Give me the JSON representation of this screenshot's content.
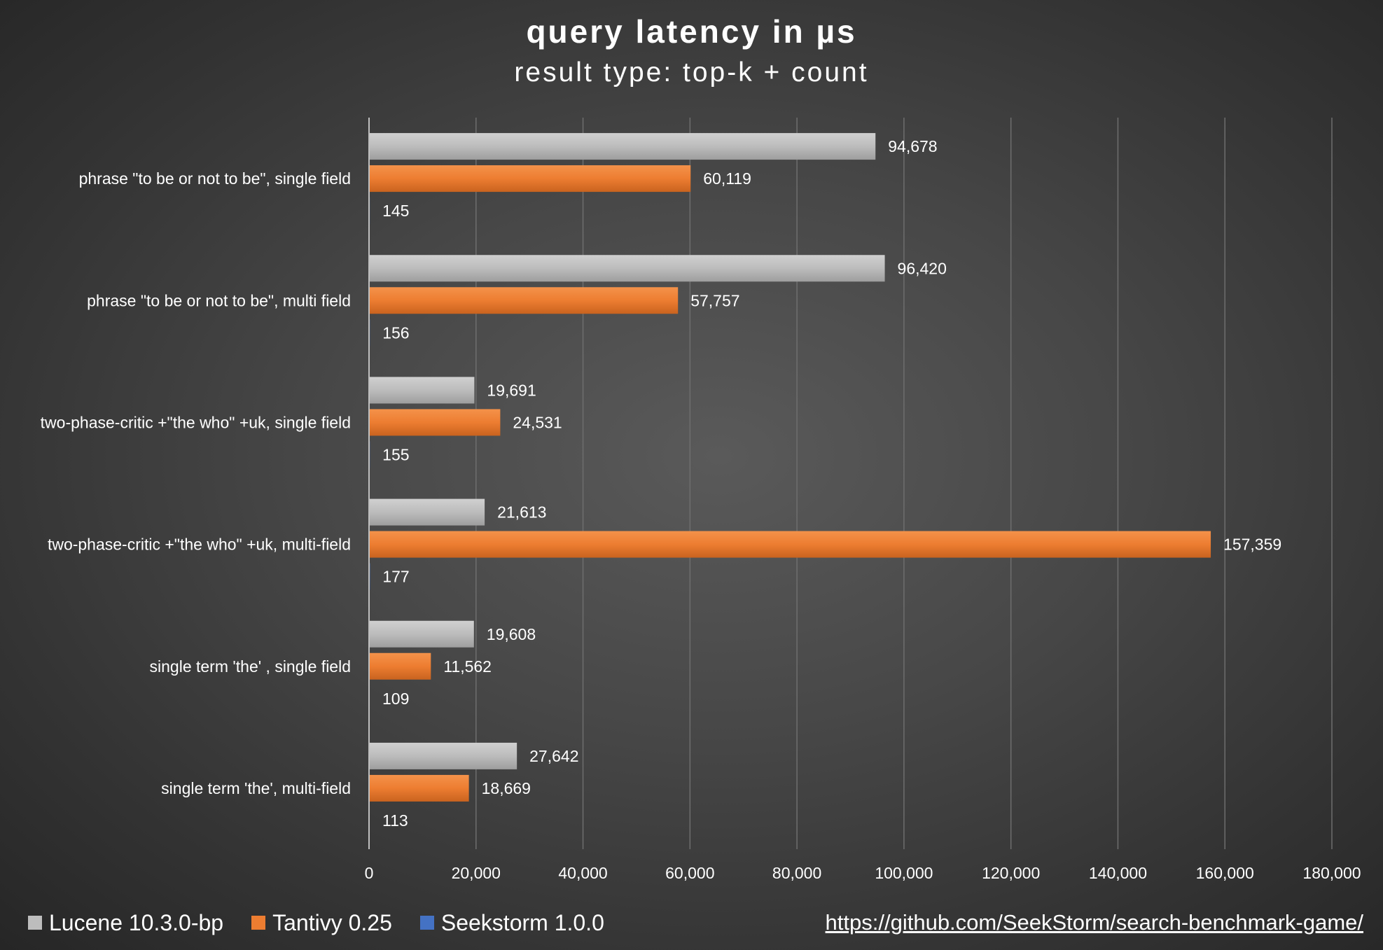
{
  "chart_data": {
    "type": "bar",
    "orientation": "horizontal",
    "title": "query latency in µs",
    "subtitle": "result type: top-k + count",
    "categories": [
      "phrase \"to be or not to be\", single field",
      "phrase \"to be or not to be\", multi field",
      "two-phase-critic +\"the who\" +uk, single field",
      "two-phase-critic +\"the who\" +uk, multi-field",
      "single term 'the' , single field",
      "single term 'the', multi-field"
    ],
    "series": [
      {
        "name": "Lucene 10.3.0-bp",
        "color": "#bdbdbd",
        "values": [
          94678,
          96420,
          19691,
          21613,
          19608,
          27642
        ],
        "labels": [
          "94,678",
          "96,420",
          "19,691",
          "21,613",
          "19,608",
          "27,642"
        ]
      },
      {
        "name": "Tantivy 0.25",
        "color": "#ed7d31",
        "values": [
          60119,
          57757,
          24531,
          157359,
          11562,
          18669
        ],
        "labels": [
          "60,119",
          "57,757",
          "24,531",
          "157,359",
          "11,562",
          "18,669"
        ]
      },
      {
        "name": "Seekstorm 1.0.0",
        "color": "#4472c4",
        "values": [
          145,
          156,
          155,
          177,
          109,
          113
        ],
        "labels": [
          "145",
          "156",
          "155",
          "177",
          "109",
          "113"
        ]
      }
    ],
    "xlim": [
      0,
      180000
    ],
    "xticks": [
      0,
      20000,
      40000,
      60000,
      80000,
      100000,
      120000,
      140000,
      160000,
      180000
    ],
    "xtick_labels": [
      "0",
      "20,000",
      "40,000",
      "60,000",
      "80,000",
      "100,000",
      "120,000",
      "140,000",
      "160,000",
      "180,000"
    ],
    "grid": "vertical",
    "legend_position": "bottom-left"
  },
  "footer": {
    "source_link": "https://github.com/SeekStorm/search-benchmark-game/"
  }
}
